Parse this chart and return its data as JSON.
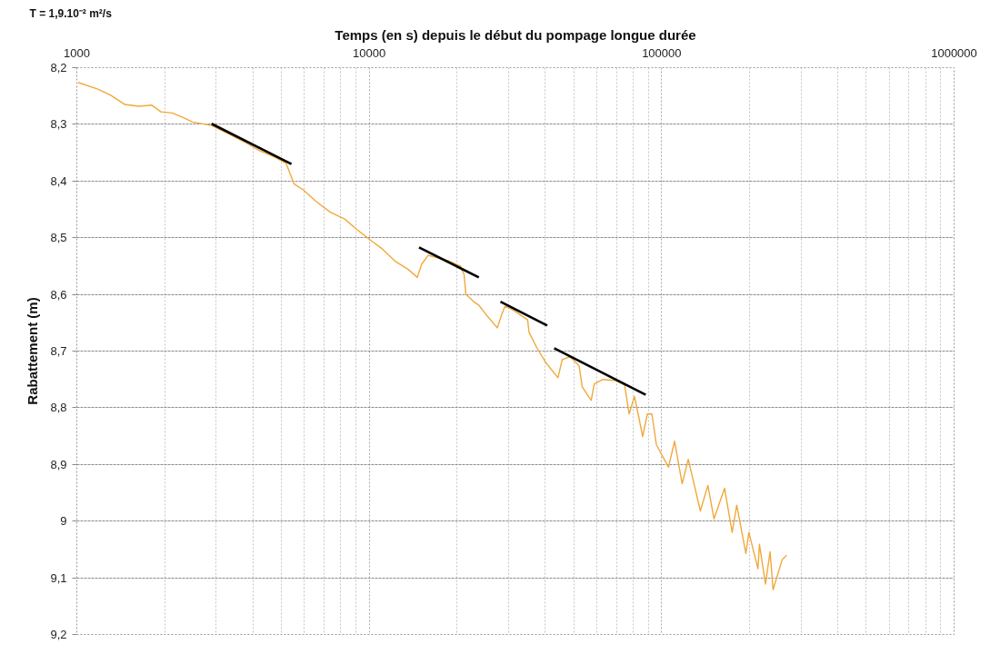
{
  "chart_data": {
    "type": "line",
    "xlabel": "Temps (en s) depuis le début du pompage longue durée",
    "ylabel": "Rabattement (m)",
    "annotations": [
      "T = 1,9.10⁻² m²/s"
    ],
    "log": "x",
    "xlim": [
      1000,
      1000000
    ],
    "xticks": [
      1000,
      10000,
      100000,
      1000000
    ],
    "ylim": [
      9.2,
      8.2
    ],
    "yticks": [
      {
        "value": 8.2,
        "label": "8,2"
      },
      {
        "value": 8.3,
        "label": "8,3"
      },
      {
        "value": 8.4,
        "label": "8,4"
      },
      {
        "value": 8.5,
        "label": "8,5"
      },
      {
        "value": 8.6,
        "label": "8,6"
      },
      {
        "value": 8.7,
        "label": "8,7"
      },
      {
        "value": 8.8,
        "label": "8,8"
      },
      {
        "value": 8.9,
        "label": "8,9"
      },
      9,
      {
        "value": 9.1,
        "label": "9,1"
      },
      {
        "value": 9.2,
        "label": "9,2"
      }
    ],
    "grid": true,
    "series": [
      {
        "color": "#f0a93c",
        "x": [
          1010,
          1180,
          1310,
          1460,
          1630,
          1800,
          1940,
          2120,
          2310,
          2490,
          2890,
          3280,
          3800,
          4200,
          4760,
          5200,
          5530,
          5960,
          6580,
          7360,
          8240,
          9100,
          10200,
          11100,
          12300,
          13600,
          14600,
          15100,
          15900,
          18700,
          20500,
          20700,
          21100,
          21400,
          22900,
          23700,
          25500,
          27400,
          28400,
          29100,
          30900,
          34800,
          35200,
          37400,
          40100,
          44200,
          45700,
          48600,
          52200,
          53500,
          57400,
          58800,
          63100,
          69500,
          74700,
          77400,
          80700,
          83100,
          86100,
          89300,
          92600,
          95900,
          105500,
          110700,
          117500,
          123300,
          135600,
          143900,
          151000,
          164100,
          174200,
          180600,
          194100,
          198700,
          213400,
          216000,
          226500,
          234800,
          240400,
          258300,
          267600
        ],
        "values": [
          8.226,
          8.238,
          8.249,
          8.265,
          8.268,
          8.266,
          8.278,
          8.28,
          8.288,
          8.296,
          8.302,
          8.316,
          8.333,
          8.346,
          8.358,
          8.369,
          8.405,
          8.416,
          8.436,
          8.455,
          8.467,
          8.486,
          8.506,
          8.52,
          8.542,
          8.556,
          8.57,
          8.547,
          8.531,
          8.541,
          8.55,
          8.556,
          8.565,
          8.6,
          8.614,
          8.619,
          8.64,
          8.659,
          8.635,
          8.621,
          8.627,
          8.645,
          8.667,
          8.694,
          8.72,
          8.747,
          8.715,
          8.71,
          8.726,
          8.763,
          8.787,
          8.758,
          8.75,
          8.752,
          8.76,
          8.811,
          8.78,
          8.811,
          8.851,
          8.811,
          8.811,
          8.865,
          8.905,
          8.859,
          8.934,
          8.891,
          8.982,
          8.937,
          8.996,
          8.942,
          9.02,
          8.972,
          9.057,
          9.02,
          9.084,
          9.041,
          9.111,
          9.054,
          9.121,
          9.068,
          9.06
        ]
      },
      {
        "type": "line",
        "color": "#000000",
        "x": [
          2890,
          5420
        ],
        "values": [
          8.299,
          8.37
        ]
      },
      {
        "type": "line",
        "color": "#000000",
        "x": [
          14800,
          23700
        ],
        "values": [
          8.517,
          8.57
        ]
      },
      {
        "type": "line",
        "color": "#000000",
        "x": [
          28100,
          40600
        ],
        "values": [
          8.613,
          8.655
        ]
      },
      {
        "type": "line",
        "color": "#000000",
        "x": [
          42900,
          88200
        ],
        "values": [
          8.695,
          8.777
        ]
      }
    ]
  }
}
